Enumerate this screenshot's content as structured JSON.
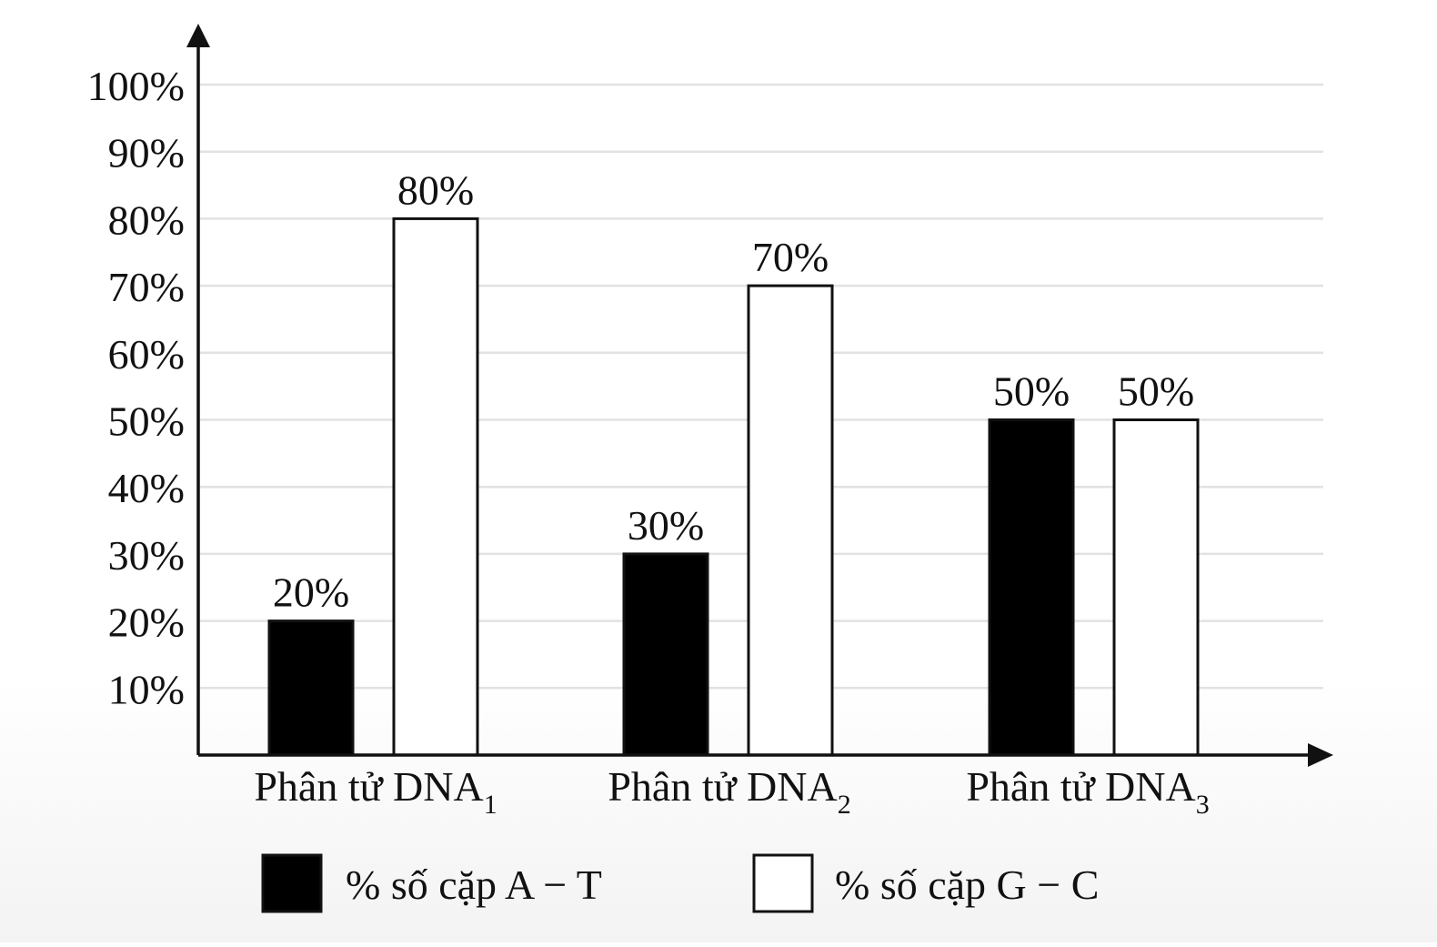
{
  "chart_data": {
    "type": "bar",
    "categories": [
      "Phân tử DNA",
      "Phân tử DNA",
      "Phân tử DNA"
    ],
    "category_subscripts": [
      "1",
      "2",
      "3"
    ],
    "series": [
      {
        "name": "% số cặp A − T",
        "values": [
          20,
          30,
          50
        ],
        "labels": [
          "20%",
          "30%",
          "50%"
        ],
        "color": "#000000"
      },
      {
        "name": "% số cặp G − C",
        "values": [
          80,
          70,
          50
        ],
        "labels": [
          "80%",
          "70%",
          "50%"
        ],
        "color": "#ffffff"
      }
    ],
    "y_ticks": [
      "10%",
      "20%",
      "30%",
      "40%",
      "50%",
      "60%",
      "70%",
      "80%",
      "90%",
      "100%"
    ],
    "ylim": [
      0,
      100
    ],
    "grid": true,
    "legend_position": "bottom",
    "title": "",
    "xlabel": "",
    "ylabel": ""
  },
  "colors": {
    "axis": "#111111",
    "grid": "#e2e2e2",
    "bar_outline": "#111111"
  }
}
